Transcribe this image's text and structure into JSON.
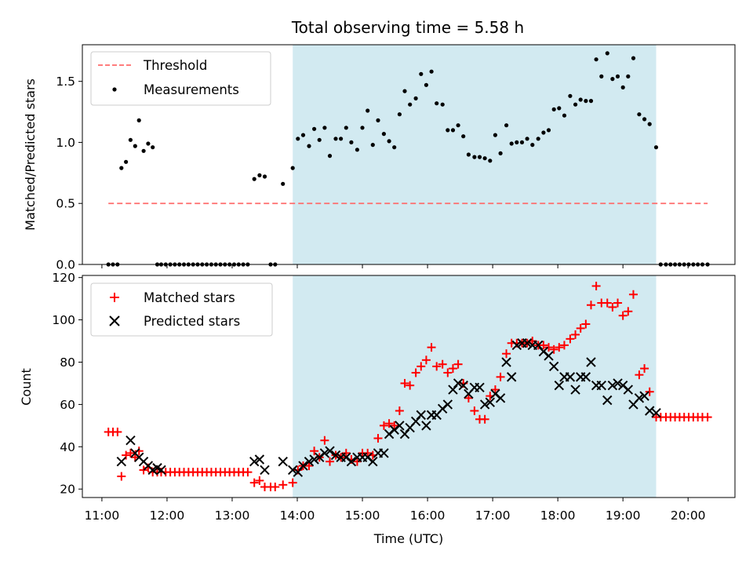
{
  "chart_data": [
    {
      "type": "scatter",
      "title": "Total observing time = 5.58 h",
      "xlabel": "",
      "ylabel": "Matched/Predicted stars",
      "ylim": [
        0,
        1.8
      ],
      "xlim": [
        10.7,
        20.72
      ],
      "yticks": [
        "0.0",
        "0.5",
        "1.0",
        "1.5"
      ],
      "legend_position": "upper-left",
      "shaded_region": [
        13.93,
        19.51
      ],
      "shade_color": "#add8e6",
      "series": [
        {
          "name": "Threshold",
          "kind": "line",
          "style": "dashed",
          "color": "#ff6b6b",
          "x": [
            11.1,
            20.3
          ],
          "y": [
            0.5,
            0.5
          ]
        },
        {
          "name": "Measurements",
          "kind": "points",
          "color": "#000000",
          "x": [
            11.1,
            11.17,
            11.24,
            11.3,
            11.37,
            11.44,
            11.51,
            11.57,
            11.64,
            11.71,
            11.78,
            11.85,
            11.91,
            11.98,
            12.05,
            12.12,
            12.19,
            12.26,
            12.33,
            12.4,
            12.47,
            12.54,
            12.61,
            12.68,
            12.75,
            12.82,
            12.89,
            12.96,
            13.03,
            13.1,
            13.17,
            13.24,
            13.34,
            13.42,
            13.5,
            13.59,
            13.66,
            13.78,
            13.93,
            14.01,
            14.09,
            14.18,
            14.26,
            14.34,
            14.42,
            14.5,
            14.59,
            14.67,
            14.75,
            14.83,
            14.92,
            15.0,
            15.08,
            15.16,
            15.24,
            15.33,
            15.41,
            15.49,
            15.57,
            15.65,
            15.73,
            15.82,
            15.9,
            15.98,
            16.06,
            16.14,
            16.23,
            16.31,
            16.39,
            16.47,
            16.55,
            16.63,
            16.72,
            16.8,
            16.88,
            16.96,
            17.04,
            17.12,
            17.21,
            17.29,
            17.37,
            17.45,
            17.53,
            17.61,
            17.7,
            17.78,
            17.86,
            17.94,
            18.02,
            18.1,
            18.19,
            18.27,
            18.35,
            18.43,
            18.51,
            18.59,
            18.67,
            18.76,
            18.84,
            18.92,
            19.0,
            19.08,
            19.16,
            19.25,
            19.33,
            19.41,
            19.51,
            19.58,
            19.66,
            19.73,
            19.8,
            19.87,
            19.94,
            20.01,
            20.08,
            20.15,
            20.22,
            20.3
          ],
          "y": [
            0.0,
            0.0,
            0.0,
            0.79,
            0.84,
            1.02,
            0.97,
            1.18,
            0.93,
            0.99,
            0.96,
            0.0,
            0.0,
            0.0,
            0.0,
            0.0,
            0.0,
            0.0,
            0.0,
            0.0,
            0.0,
            0.0,
            0.0,
            0.0,
            0.0,
            0.0,
            0.0,
            0.0,
            0.0,
            0.0,
            0.0,
            0.0,
            0.7,
            0.73,
            0.72,
            0.0,
            0.0,
            0.66,
            0.79,
            1.03,
            1.06,
            0.97,
            1.11,
            1.02,
            1.12,
            0.89,
            1.03,
            1.03,
            1.12,
            1.0,
            0.94,
            1.12,
            1.26,
            0.98,
            1.18,
            1.07,
            1.01,
            0.96,
            1.23,
            1.42,
            1.31,
            1.36,
            1.56,
            1.47,
            1.58,
            1.32,
            1.31,
            1.1,
            1.1,
            1.14,
            1.05,
            0.9,
            0.88,
            0.88,
            0.87,
            0.85,
            1.06,
            0.91,
            1.14,
            0.99,
            1.0,
            1.0,
            1.03,
            0.98,
            1.03,
            1.08,
            1.1,
            1.27,
            1.28,
            1.22,
            1.38,
            1.31,
            1.35,
            1.34,
            1.34,
            1.68,
            1.54,
            1.73,
            1.52,
            1.54,
            1.45,
            1.54,
            1.69,
            1.23,
            1.19,
            1.15,
            0.96,
            0.0,
            0.0,
            0.0,
            0.0,
            0.0,
            0.0,
            0.0,
            0.0,
            0.0,
            0.0,
            0.0
          ]
        }
      ]
    },
    {
      "type": "scatter",
      "title": "",
      "xlabel": "Time (UTC)",
      "ylabel": "Count",
      "ylim": [
        16,
        121
      ],
      "xlim": [
        10.7,
        20.72
      ],
      "yticks": [
        "20",
        "40",
        "60",
        "80",
        "100",
        "120"
      ],
      "xticks": [
        "11:00",
        "12:00",
        "13:00",
        "14:00",
        "15:00",
        "16:00",
        "17:00",
        "18:00",
        "19:00",
        "20:00"
      ],
      "legend_position": "upper-left",
      "shaded_region": [
        13.93,
        19.51
      ],
      "shade_color": "#add8e6",
      "series": [
        {
          "name": "Matched stars",
          "kind": "plus",
          "color": "#ff0000",
          "x": [
            11.1,
            11.17,
            11.24,
            11.3,
            11.37,
            11.44,
            11.51,
            11.57,
            11.64,
            11.71,
            11.78,
            11.85,
            11.91,
            11.98,
            12.05,
            12.12,
            12.19,
            12.26,
            12.33,
            12.4,
            12.47,
            12.54,
            12.61,
            12.68,
            12.75,
            12.82,
            12.89,
            12.96,
            13.03,
            13.1,
            13.17,
            13.24,
            13.34,
            13.42,
            13.5,
            13.59,
            13.66,
            13.78,
            13.93,
            14.01,
            14.09,
            14.18,
            14.26,
            14.34,
            14.42,
            14.5,
            14.59,
            14.67,
            14.75,
            14.83,
            14.92,
            15.0,
            15.08,
            15.16,
            15.24,
            15.33,
            15.41,
            15.49,
            15.57,
            15.65,
            15.73,
            15.82,
            15.9,
            15.98,
            16.06,
            16.14,
            16.23,
            16.31,
            16.39,
            16.47,
            16.55,
            16.63,
            16.72,
            16.8,
            16.88,
            16.96,
            17.04,
            17.12,
            17.21,
            17.29,
            17.37,
            17.45,
            17.53,
            17.61,
            17.7,
            17.78,
            17.86,
            17.94,
            18.02,
            18.1,
            18.19,
            18.27,
            18.35,
            18.43,
            18.51,
            18.59,
            18.67,
            18.76,
            18.84,
            18.92,
            19.0,
            19.08,
            19.16,
            19.25,
            19.33,
            19.41,
            19.51,
            19.58,
            19.66,
            19.73,
            19.8,
            19.87,
            19.94,
            20.01,
            20.08,
            20.15,
            20.22,
            20.3
          ],
          "y": [
            47,
            47,
            47,
            26,
            36,
            37,
            35,
            38,
            29,
            30,
            28,
            28,
            28,
            28,
            28,
            28,
            28,
            28,
            28,
            28,
            28,
            28,
            28,
            28,
            28,
            28,
            28,
            28,
            28,
            28,
            28,
            28,
            23,
            24,
            21,
            21,
            21,
            22,
            23,
            29,
            31,
            31,
            38,
            35,
            43,
            33,
            36,
            35,
            37,
            34,
            33,
            37,
            37,
            36,
            44,
            50,
            51,
            50,
            57,
            70,
            69,
            75,
            78,
            81,
            87,
            78,
            79,
            75,
            77,
            79,
            70,
            63,
            57,
            53,
            53,
            64,
            67,
            73,
            84,
            89,
            89,
            89,
            89,
            90,
            88,
            88,
            87,
            86,
            87,
            88,
            91,
            93,
            96,
            98,
            107,
            116,
            108,
            108,
            106,
            108,
            102,
            104,
            112,
            74,
            77,
            66,
            54,
            54,
            54,
            54,
            54,
            54,
            54,
            54,
            54,
            54,
            54,
            54
          ]
        },
        {
          "name": "Predicted stars",
          "kind": "cross",
          "color": "#000000",
          "x": [
            11.3,
            11.44,
            11.51,
            11.57,
            11.64,
            11.71,
            11.78,
            11.85,
            11.91,
            13.34,
            13.42,
            13.5,
            13.78,
            13.93,
            14.01,
            14.09,
            14.18,
            14.26,
            14.34,
            14.42,
            14.5,
            14.59,
            14.67,
            14.75,
            14.83,
            14.92,
            15.0,
            15.08,
            15.16,
            15.24,
            15.33,
            15.41,
            15.49,
            15.57,
            15.65,
            15.73,
            15.82,
            15.9,
            15.98,
            16.06,
            16.14,
            16.23,
            16.31,
            16.39,
            16.47,
            16.55,
            16.63,
            16.72,
            16.8,
            16.88,
            16.96,
            17.04,
            17.12,
            17.21,
            17.29,
            17.37,
            17.45,
            17.53,
            17.61,
            17.7,
            17.78,
            17.86,
            17.94,
            18.02,
            18.1,
            18.19,
            18.27,
            18.35,
            18.43,
            18.51,
            18.59,
            18.67,
            18.76,
            18.84,
            18.92,
            19.0,
            19.08,
            19.16,
            19.25,
            19.33,
            19.41,
            19.51
          ],
          "y": [
            33,
            43,
            37,
            35,
            33,
            31,
            29,
            30,
            29,
            33,
            34,
            29,
            33,
            29,
            28,
            31,
            33,
            34,
            35,
            37,
            38,
            36,
            35,
            35,
            33,
            35,
            35,
            35,
            33,
            37,
            37,
            46,
            48,
            50,
            46,
            49,
            52,
            55,
            50,
            55,
            55,
            58,
            60,
            67,
            70,
            69,
            65,
            68,
            68,
            60,
            61,
            65,
            63,
            80,
            73,
            88,
            89,
            89,
            88,
            88,
            85,
            83,
            78,
            69,
            73,
            73,
            67,
            73,
            73,
            80,
            69,
            69,
            62,
            69,
            70,
            69,
            67,
            60,
            63,
            64,
            57,
            56
          ]
        }
      ]
    }
  ]
}
